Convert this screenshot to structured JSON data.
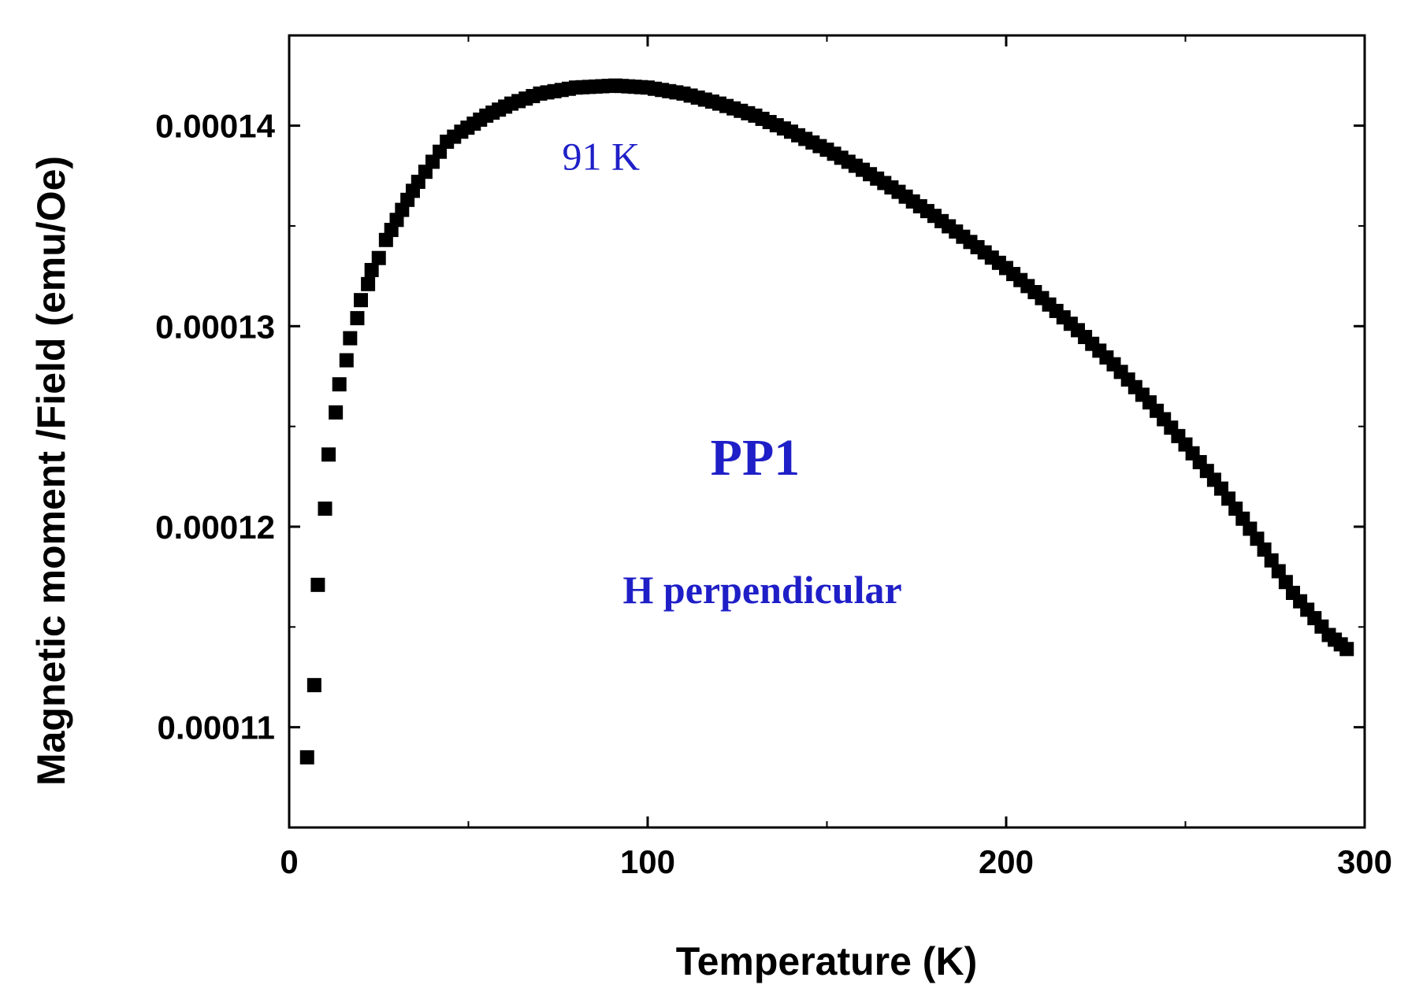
{
  "chart_data": {
    "type": "scatter",
    "title": "",
    "xlabel": "Temperature (K)",
    "ylabel": "Magnetic moment /Field (emu/Oe)",
    "xlim": [
      0,
      300
    ],
    "ylim": [
      0.000105,
      0.0001445
    ],
    "x_ticks": [
      0,
      100,
      200,
      300
    ],
    "x_tick_labels": [
      "0",
      "100",
      "200",
      "300"
    ],
    "y_ticks": [
      0.00011,
      0.00012,
      0.00013,
      0.00014
    ],
    "y_tick_labels": [
      "0.00011",
      "0.00012",
      "0.00013",
      "0.00014"
    ],
    "marker": "square",
    "marker_color": "#000000",
    "annotation_color": "#1f1fc8",
    "annotations": [
      {
        "text": "91 K",
        "x": 87,
        "y": 0.0001378,
        "style": "normal"
      },
      {
        "text": "PP1",
        "x": 130,
        "y": 0.0001226,
        "style": "bold-large"
      },
      {
        "text": "H perpendicular",
        "x": 132,
        "y": 0.0001162,
        "style": "bold"
      }
    ],
    "series": [
      {
        "name": "PP1",
        "x": [
          5,
          7,
          8,
          10,
          11,
          13,
          14,
          16,
          17,
          19,
          20,
          22,
          23,
          25,
          27,
          30,
          33,
          36,
          40,
          44,
          48,
          55,
          62,
          70,
          80,
          91,
          100,
          110,
          120,
          130,
          140,
          150,
          160,
          170,
          180,
          190,
          200,
          210,
          220,
          230,
          240,
          250,
          260,
          270,
          280,
          290,
          295
        ],
        "y": [
          0.0001085,
          0.0001121,
          0.0001171,
          0.0001209,
          0.0001236,
          0.0001257,
          0.0001271,
          0.0001283,
          0.0001294,
          0.0001304,
          0.0001313,
          0.0001321,
          0.0001328,
          0.0001334,
          0.0001343,
          0.0001353,
          0.0001363,
          0.0001372,
          0.0001382,
          0.0001392,
          0.0001397,
          0.0001405,
          0.0001411,
          0.0001416,
          0.0001419,
          0.000142,
          0.0001419,
          0.0001416,
          0.0001411,
          0.0001405,
          0.0001397,
          0.0001388,
          0.0001378,
          0.0001367,
          0.0001355,
          0.0001342,
          0.0001329,
          0.0001314,
          0.0001298,
          0.0001281,
          0.0001262,
          0.0001241,
          0.0001219,
          0.0001194,
          0.0001167,
          0.0001146,
          0.0001139
        ]
      }
    ]
  }
}
